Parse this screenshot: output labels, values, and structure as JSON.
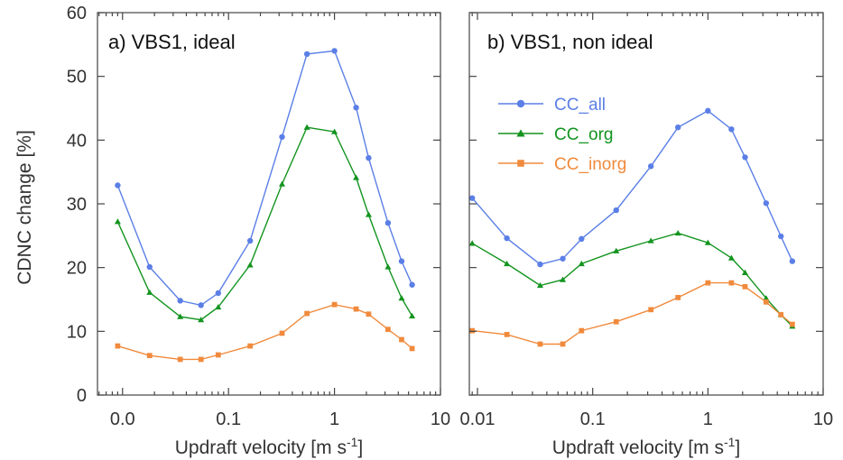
{
  "colors": {
    "CC_all": "#5b7fe6",
    "CC_org": "#13941f",
    "CC_inorg": "#f08a3c",
    "axis": "#444444"
  },
  "ylabel": "CDNC change [%]",
  "chart_data": [
    {
      "type": "line",
      "title": "a) VBS1, ideal",
      "xlabel": "Updraft velocity [m s",
      "xlabel_sup": "-1",
      "xscale": "log",
      "xlim": [
        0.0058,
        10
      ],
      "ylim": [
        0,
        60
      ],
      "xticks": [
        {
          "value": 0.01,
          "label": "0.0"
        },
        {
          "value": 0.1,
          "label": "0.1"
        },
        {
          "value": 1,
          "label": "1"
        },
        {
          "value": 10,
          "label": "10"
        }
      ],
      "yticks": [
        0,
        10,
        20,
        30,
        40,
        50,
        60
      ],
      "legend": false,
      "x": [
        0.009,
        0.018,
        0.035,
        0.055,
        0.08,
        0.16,
        0.32,
        0.55,
        1.0,
        1.6,
        2.1,
        3.2,
        4.3,
        5.4
      ],
      "series": [
        {
          "name": "CC_all",
          "marker": "circle",
          "values": [
            32.9,
            20.1,
            14.8,
            14.1,
            16.0,
            24.2,
            40.5,
            53.5,
            54.0,
            45.1,
            37.2,
            27.0,
            21.0,
            17.3
          ]
        },
        {
          "name": "CC_org",
          "marker": "triangle",
          "values": [
            27.2,
            16.1,
            12.3,
            11.8,
            13.8,
            20.4,
            33.1,
            42.0,
            41.3,
            34.1,
            28.3,
            20.1,
            15.2,
            12.4
          ]
        },
        {
          "name": "CC_inorg",
          "marker": "square",
          "values": [
            7.7,
            6.2,
            5.6,
            5.6,
            6.3,
            7.7,
            9.7,
            12.8,
            14.2,
            13.5,
            12.7,
            10.3,
            8.7,
            7.3
          ]
        }
      ]
    },
    {
      "type": "line",
      "title": "b) VBS1, non ideal",
      "xlabel": "Updraft velocity [m s",
      "xlabel_sup": "-1",
      "xscale": "log",
      "xlim": [
        0.0085,
        10
      ],
      "ylim": [
        0,
        60
      ],
      "xticks": [
        {
          "value": 0.01,
          "label": "0.01"
        },
        {
          "value": 0.1,
          "label": "0.1"
        },
        {
          "value": 1,
          "label": "1"
        },
        {
          "value": 10,
          "label": "10"
        }
      ],
      "yticks": [
        0,
        10,
        20,
        30,
        40,
        50,
        60
      ],
      "legend": true,
      "legend_position": "upper-left",
      "x": [
        0.009,
        0.018,
        0.035,
        0.055,
        0.08,
        0.16,
        0.32,
        0.55,
        1.0,
        1.6,
        2.1,
        3.2,
        4.3,
        5.4
      ],
      "series": [
        {
          "name": "CC_all",
          "marker": "circle",
          "values": [
            30.9,
            24.6,
            20.5,
            21.4,
            24.5,
            29.0,
            35.9,
            42.0,
            44.6,
            41.7,
            37.3,
            30.1,
            24.9,
            21.0
          ]
        },
        {
          "name": "CC_org",
          "marker": "triangle",
          "values": [
            23.8,
            20.6,
            17.2,
            18.1,
            20.6,
            22.6,
            24.2,
            25.4,
            23.9,
            21.5,
            19.2,
            15.2,
            12.6,
            10.8
          ]
        },
        {
          "name": "CC_inorg",
          "marker": "square",
          "values": [
            10.1,
            9.5,
            8.0,
            8.0,
            10.1,
            11.5,
            13.4,
            15.3,
            17.6,
            17.6,
            17.0,
            14.6,
            12.6,
            11.1
          ]
        }
      ]
    }
  ]
}
